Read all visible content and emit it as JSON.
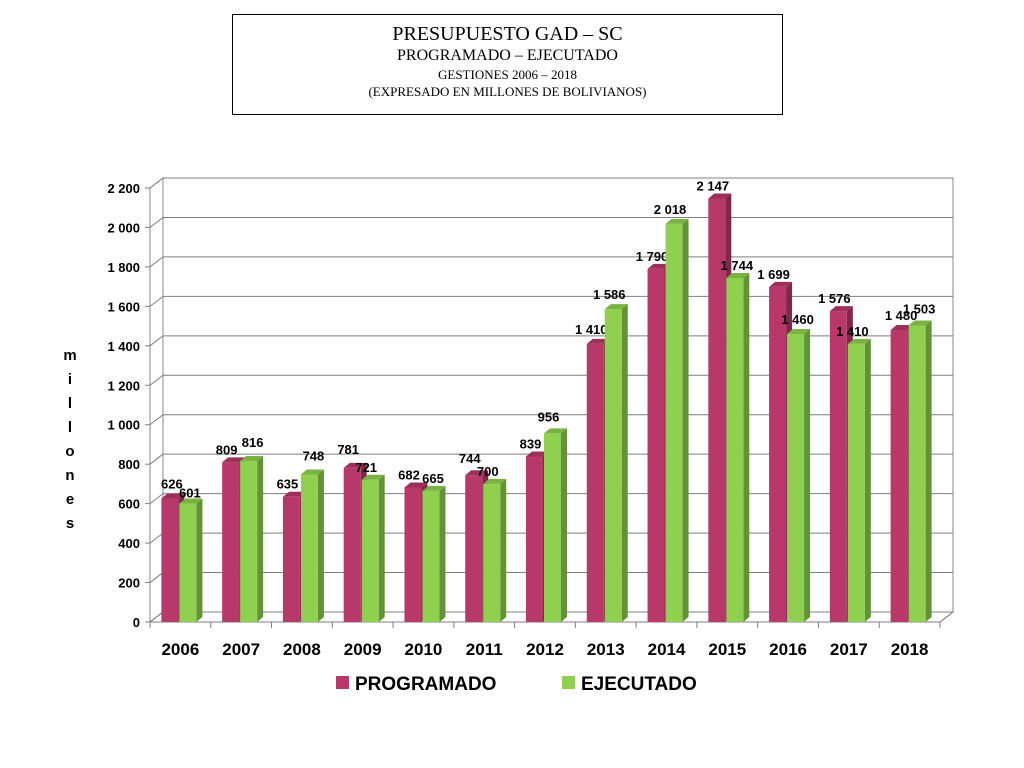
{
  "header": {
    "title": "PRESUPUESTO GAD – SC",
    "subtitle": "PROGRAMADO – EJECUTADO",
    "period": "GESTIONES 2006 – 2018",
    "note": "(EXPRESADO EN MILLONES DE BOLIVIANOS)"
  },
  "chart_data": {
    "type": "bar",
    "categories": [
      "2006",
      "2007",
      "2008",
      "2009",
      "2010",
      "2011",
      "2012",
      "2013",
      "2014",
      "2015",
      "2016",
      "2017",
      "2018"
    ],
    "series": [
      {
        "name": "PROGRAMADO",
        "values": [
          626,
          809,
          635,
          781,
          682,
          744,
          839,
          1410,
          1790,
          2147,
          1699,
          1576,
          1480
        ],
        "labels": [
          "626",
          "809",
          "635",
          "781",
          "682",
          "744",
          "839",
          "1 410",
          "1 790",
          "2 147",
          "1 699",
          "1 576",
          "1 480"
        ]
      },
      {
        "name": "EJECUTADO",
        "values": [
          601,
          816,
          748,
          721,
          665,
          700,
          956,
          1586,
          2018,
          1744,
          1460,
          1410,
          1503
        ],
        "labels": [
          "601",
          "816",
          "748",
          "721",
          "665",
          "700",
          "956",
          "1 586",
          "2 018",
          "1 744",
          "1 460",
          "1 410",
          "1 503"
        ]
      }
    ],
    "ylabel": "millones",
    "ylim": [
      0,
      2200
    ],
    "yticks": [
      0,
      200,
      400,
      600,
      800,
      1000,
      1200,
      1400,
      1600,
      1800,
      2000,
      2200
    ],
    "ytick_labels": [
      "0",
      "200",
      "400",
      "600",
      "800",
      "1 000",
      "1 200",
      "1 400",
      "1 600",
      "1 800",
      "2 000",
      "2 200"
    ],
    "grid": true,
    "legend_position": "bottom",
    "colors": {
      "PROGRAMADO": "#b8386a",
      "EJECUTADO": "#8fd14f"
    }
  }
}
